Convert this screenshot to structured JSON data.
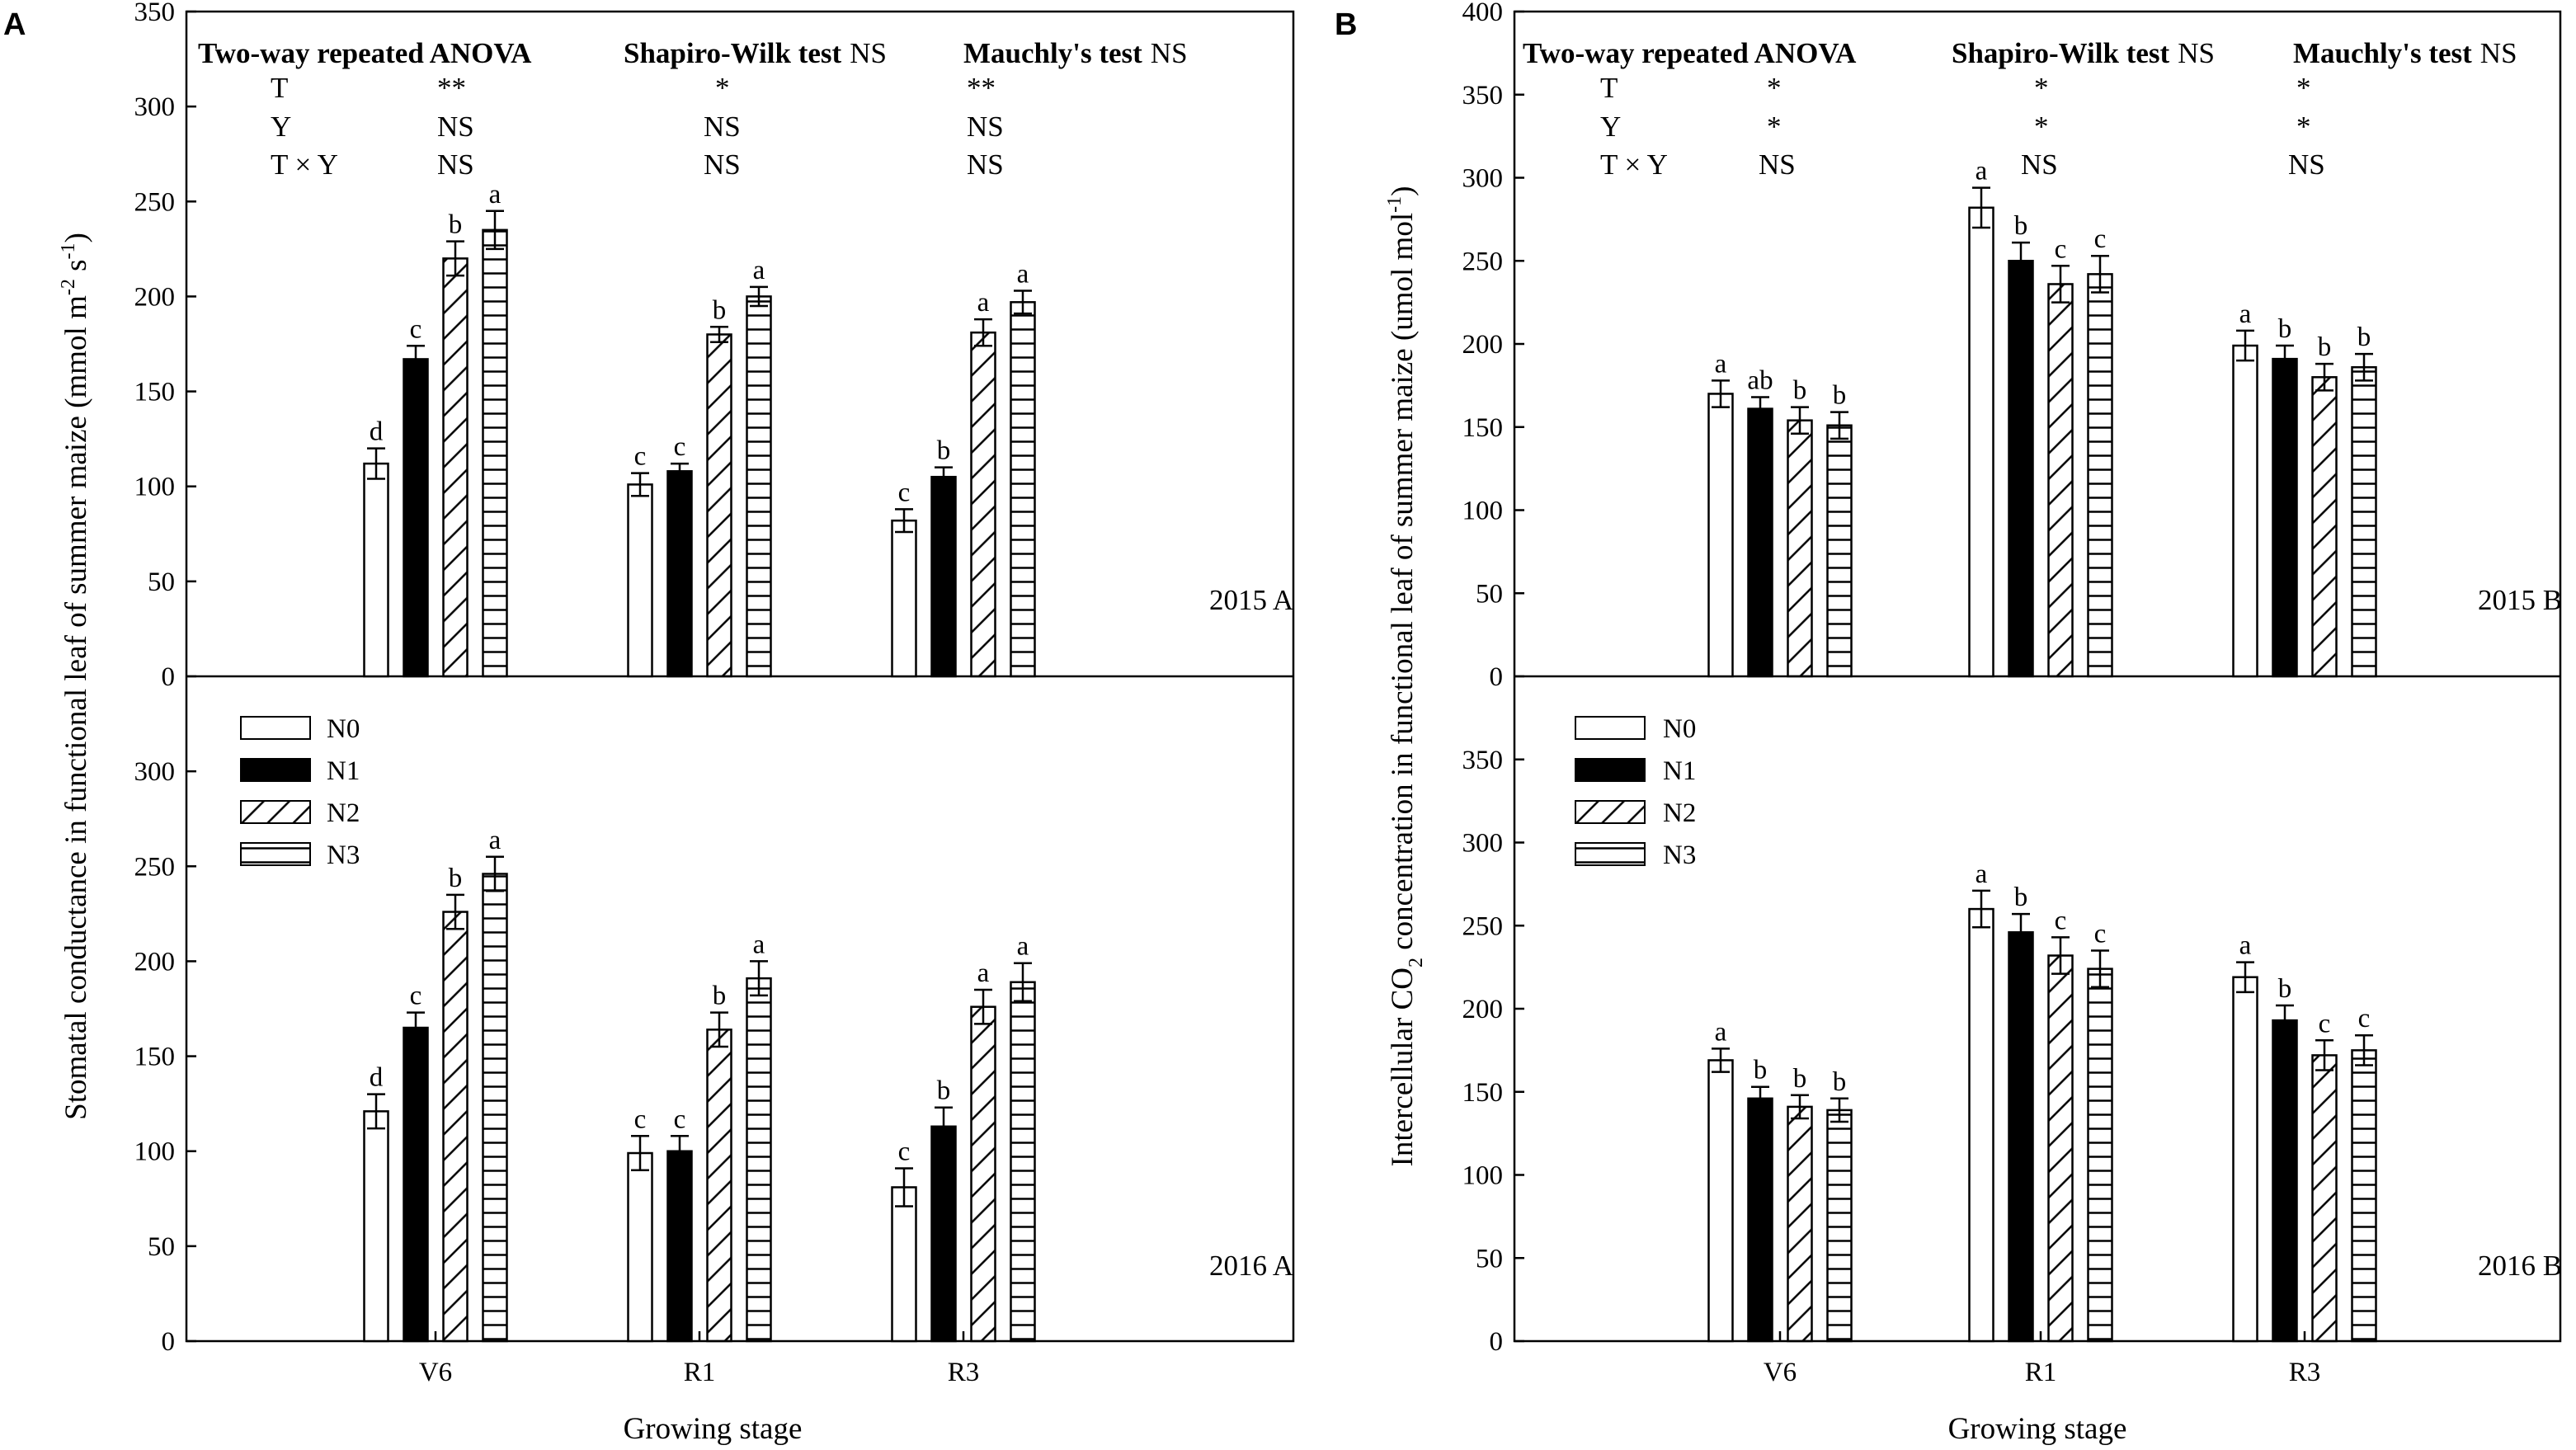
{
  "legend": [
    {
      "key": "N0",
      "label": "N0"
    },
    {
      "key": "N1",
      "label": "N1"
    },
    {
      "key": "N2",
      "label": "N2"
    },
    {
      "key": "N3",
      "label": "N3"
    }
  ],
  "categories": [
    "V6",
    "R1",
    "R3"
  ],
  "xlabel": "Growing stage",
  "panels": [
    {
      "letter": "A",
      "ylabel_parts": [
        "Stomatal conductance in functional leaf of summer maize (mmol m",
        "-2",
        " s",
        "-1",
        ")"
      ],
      "stats": {
        "anova": "Two-way repeated ANOVA",
        "shapiro": "Shapiro-Wilk test",
        "shapiro_ns": "NS",
        "mauchly": "Mauchly's test",
        "mauchly_ns": "NS",
        "rows": [
          {
            "term": "T",
            "anova": "**",
            "shapiro": "*",
            "mauchly": "**"
          },
          {
            "term": "Y",
            "anova": "NS",
            "shapiro": "NS",
            "mauchly": "NS"
          },
          {
            "term": "T × Y",
            "anova": "NS",
            "shapiro": "NS",
            "mauchly": "NS"
          }
        ]
      }
    },
    {
      "letter": "B",
      "ylabel_parts": [
        "Intercellular CO",
        "2",
        " concentration in functional leaf of summer maize (umol mol",
        "-1",
        ")"
      ],
      "stats": {
        "anova": "Two-way repeated ANOVA",
        "shapiro": "Shapiro-Wilk test",
        "shapiro_ns": "NS",
        "mauchly": "Mauchly's test",
        "mauchly_ns": "NS",
        "rows": [
          {
            "term": "T",
            "anova": "*",
            "shapiro": "*",
            "mauchly": "*"
          },
          {
            "term": "Y",
            "anova": "*",
            "shapiro": "*",
            "mauchly": "*"
          },
          {
            "term": "T × Y",
            "anova": "NS",
            "shapiro": "NS",
            "mauchly": "NS"
          }
        ]
      }
    }
  ],
  "chart_data": [
    {
      "type": "bar",
      "panel": "A",
      "subplot": "2015 A",
      "title": "2015 A",
      "ylim": [
        0,
        350
      ],
      "yticks": [
        0,
        50,
        100,
        150,
        200,
        250,
        300,
        350
      ],
      "categories": [
        "V6",
        "R1",
        "R3"
      ],
      "xlabel": "Growing stage",
      "series": [
        {
          "name": "N0",
          "values": [
            112,
            101,
            82
          ],
          "errors": [
            8,
            6,
            6
          ],
          "letters": [
            "d",
            "c",
            "c"
          ]
        },
        {
          "name": "N1",
          "values": [
            167,
            108,
            105
          ],
          "errors": [
            7,
            4,
            5
          ],
          "letters": [
            "c",
            "c",
            "b"
          ]
        },
        {
          "name": "N2",
          "values": [
            220,
            180,
            181
          ],
          "errors": [
            9,
            4,
            7
          ],
          "letters": [
            "b",
            "b",
            "a"
          ]
        },
        {
          "name": "N3",
          "values": [
            235,
            200,
            197
          ],
          "errors": [
            10,
            5,
            6
          ],
          "letters": [
            "a",
            "a",
            "a"
          ]
        }
      ]
    },
    {
      "type": "bar",
      "panel": "A",
      "subplot": "2016 A",
      "title": "2016 A",
      "ylim": [
        0,
        350
      ],
      "yticks": [
        0,
        50,
        100,
        150,
        200,
        250,
        300
      ],
      "categories": [
        "V6",
        "R1",
        "R3"
      ],
      "xlabel": "Growing stage",
      "series": [
        {
          "name": "N0",
          "values": [
            121,
            99,
            81
          ],
          "errors": [
            9,
            9,
            10
          ],
          "letters": [
            "d",
            "c",
            "c"
          ]
        },
        {
          "name": "N1",
          "values": [
            165,
            100,
            113
          ],
          "errors": [
            8,
            8,
            10
          ],
          "letters": [
            "c",
            "c",
            "b"
          ]
        },
        {
          "name": "N2",
          "values": [
            226,
            164,
            176
          ],
          "errors": [
            9,
            9,
            9
          ],
          "letters": [
            "b",
            "b",
            "a"
          ]
        },
        {
          "name": "N3",
          "values": [
            246,
            191,
            189
          ],
          "errors": [
            9,
            9,
            10
          ],
          "letters": [
            "a",
            "a",
            "a"
          ]
        }
      ]
    },
    {
      "type": "bar",
      "panel": "B",
      "subplot": "2015 B",
      "title": "2015 B",
      "ylim": [
        0,
        400
      ],
      "yticks": [
        0,
        50,
        100,
        150,
        200,
        250,
        300,
        350,
        400
      ],
      "categories": [
        "V6",
        "R1",
        "R3"
      ],
      "xlabel": "Growing stage",
      "series": [
        {
          "name": "N0",
          "values": [
            170,
            282,
            199
          ],
          "errors": [
            8,
            12,
            9
          ],
          "letters": [
            "a",
            "a",
            "a"
          ]
        },
        {
          "name": "N1",
          "values": [
            161,
            250,
            191
          ],
          "errors": [
            7,
            11,
            8
          ],
          "letters": [
            "ab",
            "b",
            "b"
          ]
        },
        {
          "name": "N2",
          "values": [
            154,
            236,
            180
          ],
          "errors": [
            8,
            11,
            8
          ],
          "letters": [
            "b",
            "c",
            "b"
          ]
        },
        {
          "name": "N3",
          "values": [
            151,
            242,
            186
          ],
          "errors": [
            8,
            11,
            8
          ],
          "letters": [
            "b",
            "c",
            "b"
          ]
        }
      ]
    },
    {
      "type": "bar",
      "panel": "B",
      "subplot": "2016 B",
      "title": "2016 B",
      "ylim": [
        0,
        400
      ],
      "yticks": [
        0,
        50,
        100,
        150,
        200,
        250,
        300,
        350
      ],
      "categories": [
        "V6",
        "R1",
        "R3"
      ],
      "xlabel": "Growing stage",
      "series": [
        {
          "name": "N0",
          "values": [
            169,
            260,
            219
          ],
          "errors": [
            7,
            11,
            9
          ],
          "letters": [
            "a",
            "a",
            "a"
          ]
        },
        {
          "name": "N1",
          "values": [
            146,
            246,
            193
          ],
          "errors": [
            7,
            11,
            9
          ],
          "letters": [
            "b",
            "b",
            "b"
          ]
        },
        {
          "name": "N2",
          "values": [
            141,
            232,
            172
          ],
          "errors": [
            7,
            11,
            9
          ],
          "letters": [
            "b",
            "c",
            "c"
          ]
        },
        {
          "name": "N3",
          "values": [
            139,
            224,
            175
          ],
          "errors": [
            7,
            11,
            9
          ],
          "letters": [
            "b",
            "c",
            "c"
          ]
        }
      ]
    }
  ]
}
